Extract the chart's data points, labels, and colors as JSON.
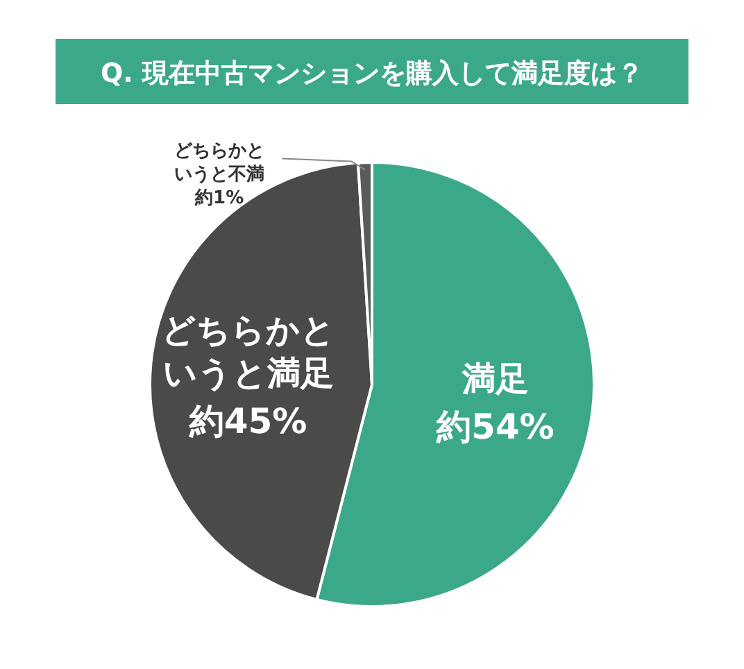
{
  "chart_data": {
    "type": "pie",
    "title": "Q. 現在中古マンションを購入して満足度は？",
    "categories": [
      "満足",
      "どちらかというと満足",
      "どちらかというと不満"
    ],
    "values": [
      54,
      45,
      1
    ],
    "value_labels": [
      "約54%",
      "約45%",
      "約1%"
    ],
    "colors": [
      "#3ba88a",
      "#4a4a4a",
      "#5a5a5a"
    ]
  }
}
